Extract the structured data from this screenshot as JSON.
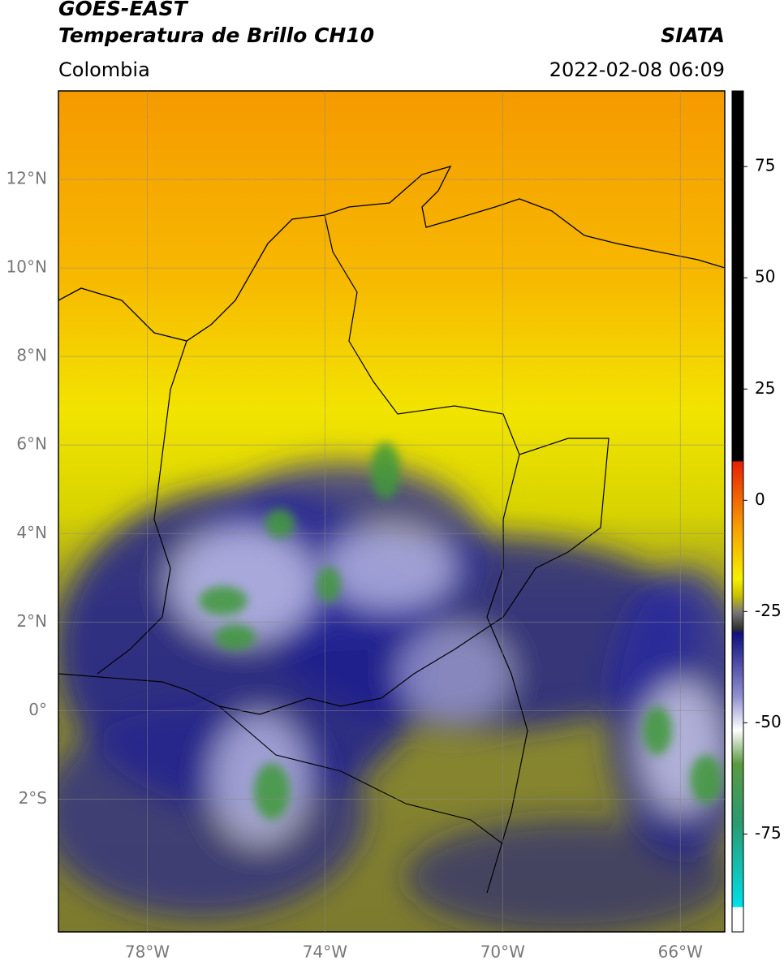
{
  "header": {
    "title": "GOES-EAST",
    "subtitle": "Temperatura de Brillo CH10",
    "source": "SIATA",
    "region": "Colombia",
    "datetime": "2022-02-08 06:09"
  },
  "map": {
    "lonlim": [
      -80,
      -65
    ],
    "latlim": [
      -5,
      14
    ],
    "lat_ticks": [
      {
        "value": 12,
        "label": "12°N"
      },
      {
        "value": 10,
        "label": "10°N"
      },
      {
        "value": 8,
        "label": "8°N"
      },
      {
        "value": 6,
        "label": "6°N"
      },
      {
        "value": 4,
        "label": "4°N"
      },
      {
        "value": 2,
        "label": "2°N"
      },
      {
        "value": 0,
        "label": "0°"
      },
      {
        "value": -2,
        "label": "2°S"
      }
    ],
    "lon_ticks": [
      {
        "value": -78,
        "label": "78°W"
      },
      {
        "value": -74,
        "label": "74°W"
      },
      {
        "value": -70,
        "label": "70°W"
      },
      {
        "value": -66,
        "label": "66°W"
      }
    ],
    "grid": true
  },
  "colorbar": {
    "clim": [
      -97,
      92
    ],
    "ticks": [
      75,
      50,
      25,
      0,
      -25,
      -50,
      -75
    ]
  }
}
